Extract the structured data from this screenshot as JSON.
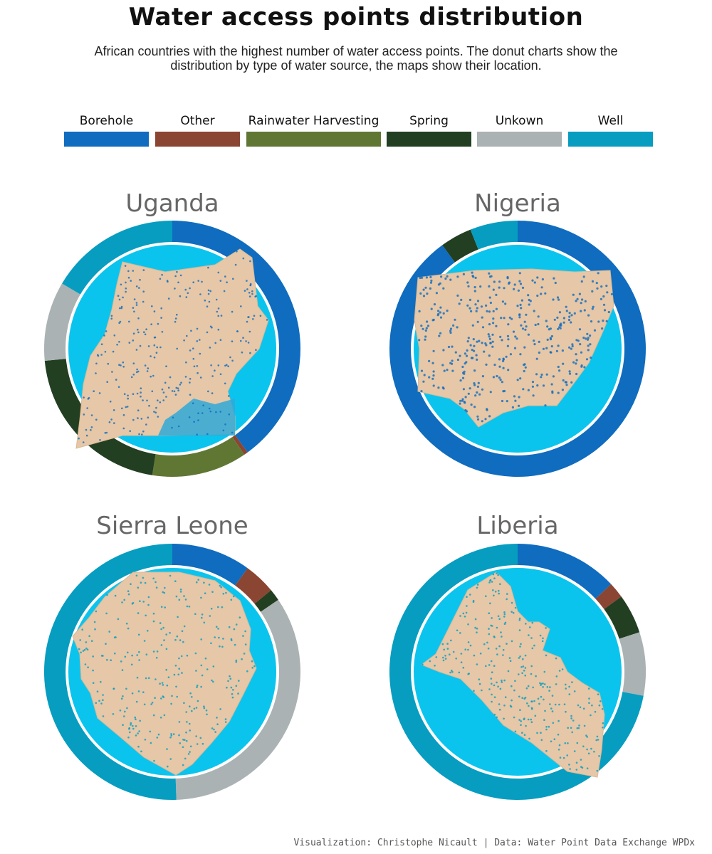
{
  "title": "Water access points distribution",
  "subtitle": "African countries with the highest number of water access points. The donut charts show the distribution by type of water source, the maps show their location.",
  "caption": "Visualization: Christophe Nicault | Data: Water Point Data Exchange WPDx",
  "legend": [
    {
      "label": "Borehole",
      "color": "#0F6CBF"
    },
    {
      "label": "Other",
      "color": "#8B4533"
    },
    {
      "label": "Rainwater Harvesting",
      "color": "#607734"
    },
    {
      "label": "Spring",
      "color": "#223F22"
    },
    {
      "label": "Unkown",
      "color": "#AAB2B4"
    },
    {
      "label": "Well",
      "color": "#069DC0"
    }
  ],
  "map_colors": {
    "inner_circle": "#0BC4EE",
    "land": "#E6C7A7",
    "points": "#2A76C0",
    "water": "#2FA9D8"
  },
  "chart_data": {
    "type": "donut",
    "categories": [
      "Borehole",
      "Other",
      "Rainwater Harvesting",
      "Spring",
      "Unkown",
      "Well"
    ],
    "charts": [
      {
        "country": "Uganda",
        "values": [
          0.4,
          0.005,
          0.12,
          0.21,
          0.1,
          0.165
        ]
      },
      {
        "country": "Nigeria",
        "values": [
          0.9,
          0.0,
          0.0,
          0.04,
          0.0,
          0.06
        ]
      },
      {
        "country": "Sierra Leone",
        "values": [
          0.1,
          0.04,
          0.0,
          0.015,
          0.34,
          0.505
        ]
      },
      {
        "country": "Liberia",
        "values": [
          0.13,
          0.02,
          0.0,
          0.05,
          0.08,
          0.72
        ]
      }
    ]
  }
}
